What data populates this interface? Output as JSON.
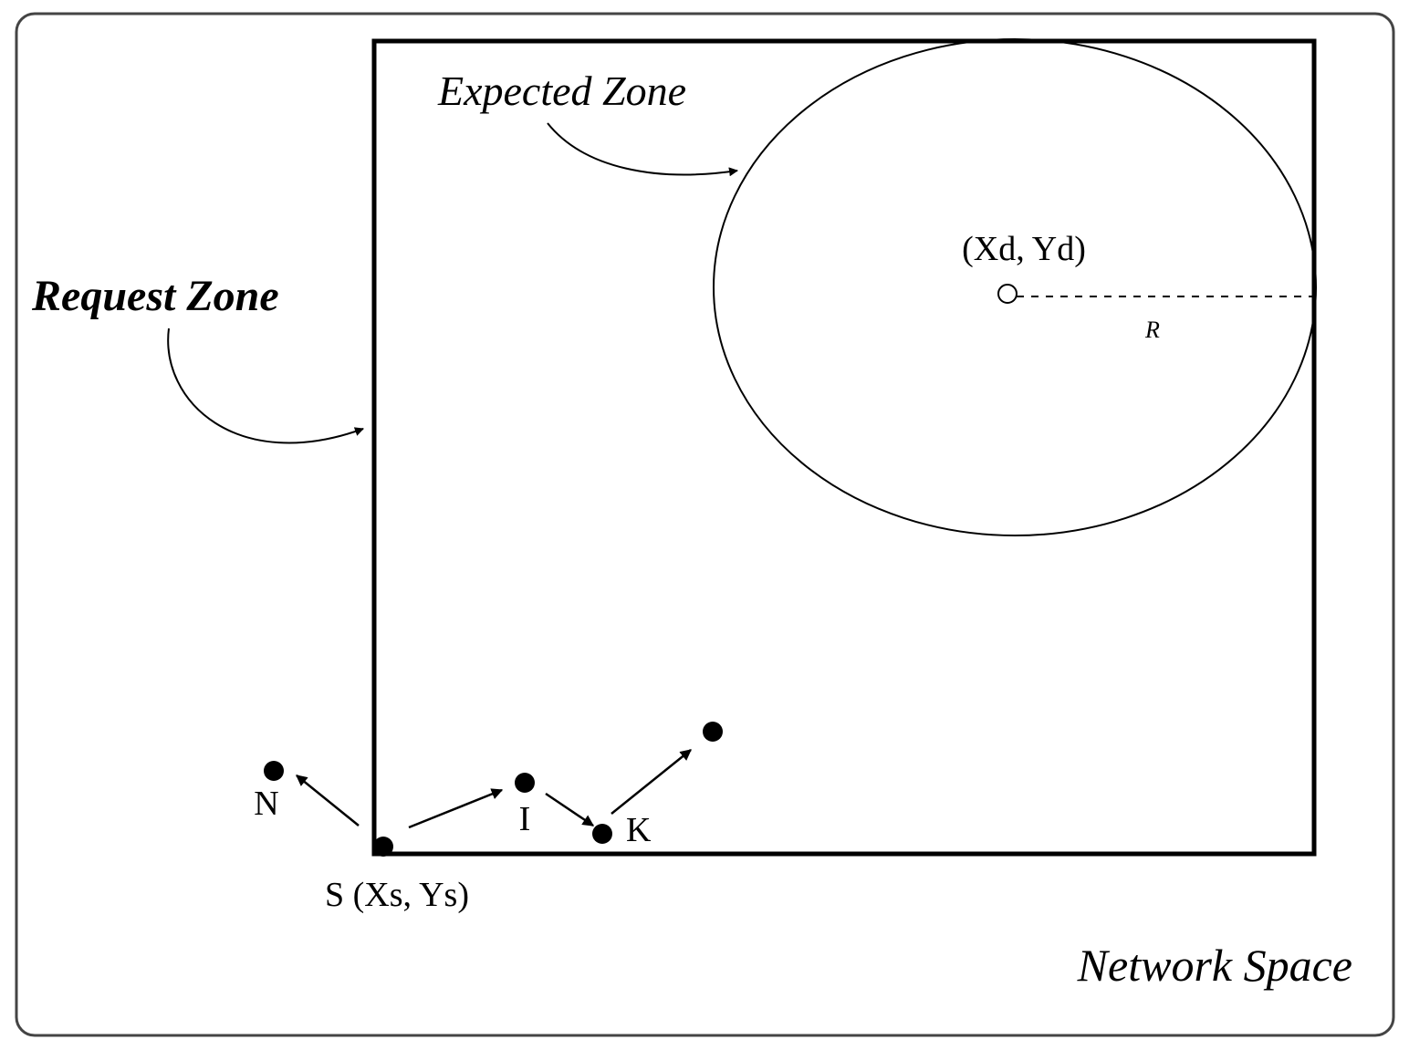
{
  "zones": {
    "expected": {
      "label": "Expected Zone"
    },
    "request": {
      "label": "Request Zone"
    }
  },
  "destination": {
    "label": "(Xd, Yd)"
  },
  "radius": {
    "label": "R"
  },
  "nodes": [
    {
      "label": "N"
    },
    {
      "label": "I"
    },
    {
      "label": "K"
    },
    {
      "label": "S (Xs, Ys)"
    }
  ],
  "network": {
    "label": "Network Space"
  }
}
